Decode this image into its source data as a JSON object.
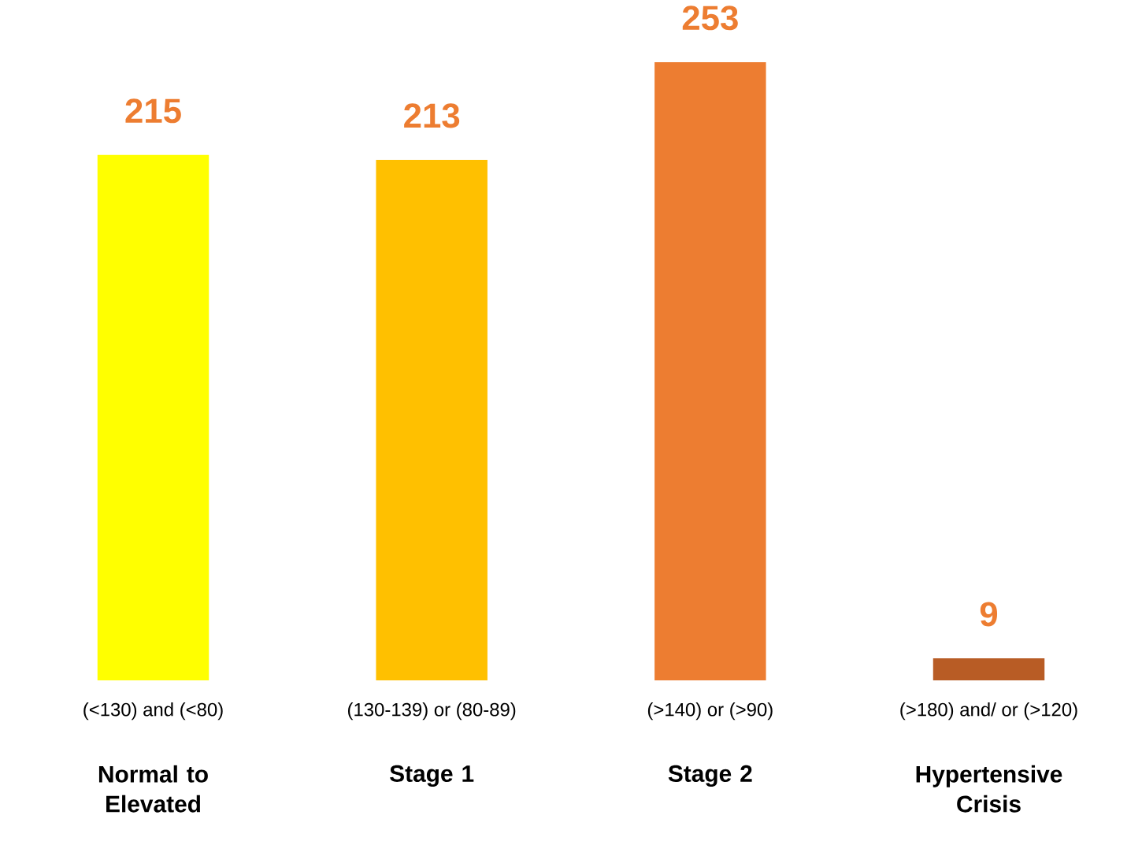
{
  "chart_data": {
    "type": "bar",
    "categories": [
      "Normal to Elevated",
      "Stage 1",
      "Stage 2",
      "Hypertensive Crisis"
    ],
    "values": [
      215,
      213,
      253,
      9
    ],
    "colors": [
      "#ffff00",
      "#ffc000",
      "#ed7d31",
      "#b85c25"
    ],
    "data_labels": true,
    "annotations": [
      "(<130) and (<80)",
      "(130-139) or (80-89)",
      "(>140) or (>90)",
      "(>180) and/ or (>120)"
    ]
  }
}
